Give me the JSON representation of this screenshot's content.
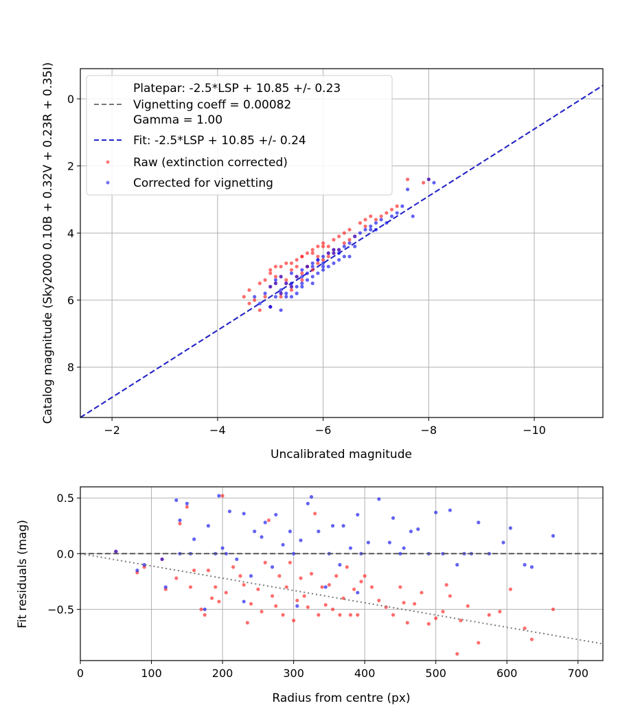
{
  "chart_data": [
    {
      "type": "scatter",
      "xlabel": "Uncalibrated magnitude",
      "ylabel": "Catalog magnitude (Sky2000 0.10B + 0.32V + 0.23R + 0.35I)",
      "xlim": [
        -1.4,
        -11.3
      ],
      "ylim": [
        9.5,
        -0.9
      ],
      "x_inverted": true,
      "y_inverted": true,
      "grid": true,
      "legend_position": "top-left",
      "xticks": [
        -2,
        -4,
        -6,
        -8,
        -10
      ],
      "xtick_labels": [
        "−2",
        "−4",
        "−6",
        "−8",
        "−10"
      ],
      "yticks": [
        0,
        2,
        4,
        6,
        8
      ],
      "ytick_labels": [
        "0",
        "2",
        "4",
        "6",
        "8"
      ],
      "lines": [
        {
          "legend_lines": [
            "Platepar: -2.5*LSP + 10.85 +/- 0.23",
            "Vignetting coeff = 0.00082",
            "Gamma = 1.00"
          ],
          "color": "#777777",
          "style": "dashed",
          "x": [
            -1.4,
            -11.3
          ],
          "y": [
            9.5,
            -0.4
          ]
        },
        {
          "legend_lines": [
            "Fit: -2.5*LSP + 10.85 +/- 0.24"
          ],
          "color": "#2222cc",
          "style": "dashed",
          "x": [
            -1.4,
            -11.3
          ],
          "y": [
            9.5,
            -0.4
          ]
        }
      ],
      "series": [
        {
          "name": "Raw (extinction corrected)",
          "color": "#ff2020",
          "x": [
            -4.5,
            -4.6,
            -4.7,
            -4.8,
            -4.9,
            -4.9,
            -5.0,
            -5.0,
            -5.1,
            -5.1,
            -5.2,
            -5.2,
            -5.3,
            -5.3,
            -5.4,
            -5.4,
            -5.5,
            -5.5,
            -5.6,
            -5.6,
            -5.7,
            -5.7,
            -5.8,
            -5.8,
            -5.9,
            -5.9,
            -6.0,
            -6.0,
            -6.1,
            -6.1,
            -6.2,
            -6.2,
            -6.3,
            -6.3,
            -6.4,
            -6.5,
            -6.6,
            -6.7,
            -6.8,
            -6.9,
            -7.0,
            -7.1,
            -7.2,
            -7.3,
            -7.4,
            -7.6,
            -7.9,
            -8.0,
            -5.0,
            -5.2,
            -5.4,
            -5.6,
            -5.8,
            -6.0,
            -4.8,
            -5.1,
            -5.5,
            -5.9,
            -6.2,
            -6.5,
            -4.6,
            -5.3,
            -5.7,
            -6.1,
            -6.4,
            -6.8,
            -5.0,
            -5.4,
            -5.6,
            -5.2
          ],
          "y": [
            5.9,
            5.7,
            6.0,
            6.3,
            5.4,
            5.9,
            5.1,
            5.6,
            5.0,
            5.5,
            5.3,
            5.8,
            4.9,
            5.4,
            5.1,
            5.6,
            4.8,
            5.3,
            4.7,
            5.2,
            4.6,
            5.0,
            4.5,
            5.1,
            4.4,
            4.9,
            4.3,
            4.8,
            4.4,
            4.7,
            4.2,
            4.6,
            4.1,
            4.5,
            4.0,
            3.9,
            4.1,
            3.7,
            3.6,
            3.5,
            3.6,
            3.5,
            3.4,
            3.3,
            3.2,
            2.4,
            2.5,
            2.4,
            5.2,
            5.0,
            4.9,
            4.7,
            4.6,
            4.4,
            5.5,
            5.3,
            5.0,
            4.7,
            4.5,
            4.2,
            6.1,
            5.5,
            5.0,
            4.6,
            4.3,
            3.8,
            6.2,
            5.7,
            5.4,
            5.9
          ]
        },
        {
          "name": "Corrected for vignetting",
          "color": "#1010ee",
          "x": [
            -4.7,
            -4.8,
            -4.9,
            -5.0,
            -5.0,
            -5.1,
            -5.1,
            -5.2,
            -5.2,
            -5.3,
            -5.3,
            -5.4,
            -5.4,
            -5.5,
            -5.5,
            -5.6,
            -5.6,
            -5.7,
            -5.7,
            -5.8,
            -5.8,
            -5.9,
            -5.9,
            -6.0,
            -6.0,
            -6.1,
            -6.1,
            -6.2,
            -6.2,
            -6.3,
            -6.3,
            -6.4,
            -6.4,
            -6.5,
            -6.6,
            -6.7,
            -6.8,
            -6.9,
            -7.0,
            -7.1,
            -7.2,
            -7.3,
            -7.4,
            -7.5,
            -7.6,
            -7.7,
            -8.0,
            -8.1,
            -5.0,
            -5.2,
            -5.4,
            -5.6,
            -5.8,
            -6.0,
            -5.1,
            -5.3,
            -5.5,
            -5.7,
            -5.9,
            -6.3,
            -6.6,
            -6.9,
            -5.4,
            -5.8,
            -6.2,
            -7.0,
            -5.2,
            -5.6,
            -6.0,
            -6.5
          ],
          "y": [
            5.9,
            6.1,
            5.8,
            5.6,
            6.2,
            5.4,
            5.9,
            5.3,
            5.7,
            5.5,
            5.9,
            5.2,
            5.6,
            5.3,
            5.8,
            5.1,
            5.5,
            5.0,
            5.4,
            4.9,
            5.3,
            4.8,
            5.2,
            4.7,
            5.1,
            4.6,
            5.0,
            4.5,
            4.9,
            4.6,
            4.8,
            4.4,
            4.7,
            4.3,
            4.4,
            4.0,
            3.9,
            3.8,
            3.7,
            3.6,
            3.7,
            3.5,
            3.4,
            3.2,
            2.7,
            3.5,
            2.4,
            2.5,
            6.2,
            5.8,
            5.5,
            5.3,
            5.0,
            4.9,
            5.5,
            5.8,
            5.6,
            5.2,
            4.8,
            4.5,
            4.1,
            3.9,
            5.9,
            5.5,
            4.6,
            3.9,
            6.3,
            5.6,
            5.0,
            4.7
          ]
        }
      ]
    },
    {
      "type": "scatter",
      "xlabel": "Radius from centre (px)",
      "ylabel": "Fit residuals (mag)",
      "xlim": [
        0,
        735
      ],
      "ylim": [
        -0.96,
        0.6
      ],
      "grid": true,
      "xticks": [
        0,
        100,
        200,
        300,
        400,
        500,
        600,
        700
      ],
      "xtick_labels": [
        "0",
        "100",
        "200",
        "300",
        "400",
        "500",
        "600",
        "700"
      ],
      "yticks": [
        0.5,
        0,
        -0.5
      ],
      "ytick_labels": [
        "0.5",
        "0.0",
        "−0.5"
      ],
      "lines": [
        {
          "color": "#555555",
          "style": "dashed",
          "x": [
            0,
            735
          ],
          "y": [
            0,
            0
          ]
        },
        {
          "color": "#777777",
          "style": "dotted",
          "x": [
            0,
            735
          ],
          "y": [
            0,
            -0.81
          ]
        }
      ],
      "series": [
        {
          "name": "Raw (extinction corrected)",
          "color": "#ff2020",
          "x": [
            50,
            80,
            90,
            115,
            120,
            135,
            140,
            150,
            155,
            160,
            175,
            180,
            185,
            190,
            195,
            200,
            205,
            215,
            225,
            230,
            235,
            240,
            250,
            255,
            260,
            270,
            275,
            280,
            285,
            290,
            295,
            300,
            305,
            310,
            315,
            320,
            330,
            335,
            340,
            345,
            350,
            355,
            360,
            365,
            370,
            375,
            380,
            385,
            390,
            400,
            410,
            420,
            430,
            440,
            450,
            460,
            470,
            480,
            490,
            500,
            510,
            520,
            530,
            535,
            545,
            560,
            575,
            590,
            605,
            625,
            635,
            665,
            170,
            265,
            325,
            395,
            455,
            515
          ],
          "y": [
            0.02,
            -0.17,
            -0.12,
            -0.05,
            -0.32,
            -0.22,
            0.27,
            0.42,
            -0.3,
            -0.15,
            -0.55,
            -0.15,
            -0.4,
            -0.3,
            -0.43,
            0.52,
            -0.35,
            -0.12,
            -0.2,
            -0.28,
            -0.62,
            -0.45,
            -0.32,
            -0.52,
            -0.08,
            -0.38,
            -0.47,
            -0.2,
            -0.55,
            -0.3,
            -0.08,
            -0.6,
            -0.42,
            -0.22,
            -0.38,
            -0.48,
            0.36,
            -0.55,
            -0.3,
            -0.46,
            -0.28,
            -0.5,
            -0.2,
            -0.55,
            -0.4,
            -0.12,
            -0.55,
            -0.32,
            -0.55,
            -0.2,
            -0.3,
            -0.42,
            -0.48,
            -0.55,
            -0.3,
            -0.62,
            -0.45,
            -0.35,
            -0.63,
            -0.58,
            -0.52,
            -0.38,
            -0.9,
            -0.6,
            -0.47,
            -0.8,
            -0.55,
            -0.52,
            -0.32,
            -0.67,
            -0.77,
            -0.5,
            -0.5,
            0.3,
            -0.18,
            -0.25,
            -0.44,
            -0.28
          ]
        },
        {
          "name": "Corrected for vignetting",
          "color": "#1010ee",
          "x": [
            50,
            80,
            90,
            115,
            120,
            135,
            140,
            150,
            155,
            160,
            175,
            180,
            190,
            195,
            200,
            205,
            210,
            220,
            230,
            240,
            245,
            255,
            260,
            270,
            275,
            285,
            295,
            305,
            310,
            320,
            325,
            335,
            345,
            350,
            355,
            365,
            370,
            380,
            390,
            395,
            405,
            420,
            435,
            440,
            450,
            455,
            465,
            475,
            490,
            500,
            510,
            520,
            530,
            540,
            550,
            560,
            575,
            595,
            605,
            625,
            635,
            665,
            140,
            230,
            300,
            390
          ],
          "y": [
            0.02,
            -0.15,
            -0.1,
            -0.05,
            -0.3,
            0.48,
            0.3,
            0.45,
            0.0,
            0.13,
            -0.5,
            0.25,
            0.0,
            0.52,
            0.05,
            0.0,
            0.38,
            -0.05,
            0.36,
            -0.2,
            0.2,
            0.15,
            0.28,
            -0.12,
            0.35,
            0.08,
            0.2,
            -0.47,
            0.12,
            0.45,
            0.51,
            0.2,
            -0.3,
            0.0,
            0.25,
            -0.1,
            0.25,
            0.05,
            0.35,
            0.0,
            0.1,
            0.49,
            0.1,
            0.32,
            0.0,
            0.05,
            0.2,
            0.22,
            0.0,
            0.37,
            0.0,
            0.39,
            -0.1,
            0.0,
            0.0,
            0.28,
            0.0,
            0.1,
            0.23,
            -0.1,
            -0.12,
            0.16,
            0.0,
            -0.43,
            0.0,
            -0.35
          ]
        }
      ]
    }
  ]
}
